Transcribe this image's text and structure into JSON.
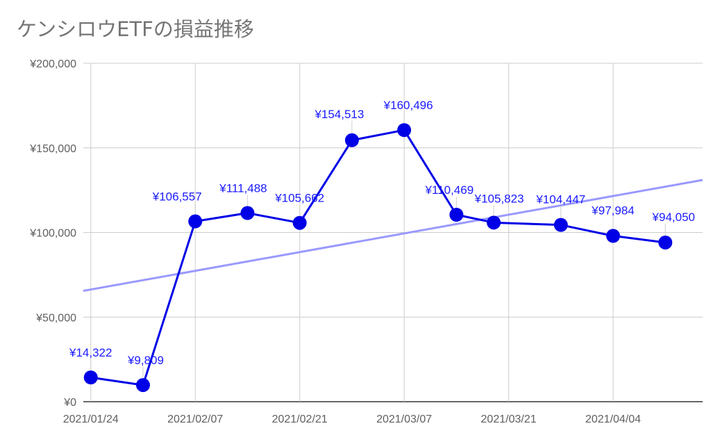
{
  "chart_data": {
    "type": "line",
    "title": "ケンシロウETFの損益推移",
    "xlabel": "",
    "ylabel": "",
    "x_ticks": [
      "2021/01/24",
      "2021/02/07",
      "2021/02/21",
      "2021/03/07",
      "2021/03/21",
      "2021/04/04"
    ],
    "y_ticks": [
      "¥0",
      "¥50,000",
      "¥100,000",
      "¥150,000",
      "¥200,000"
    ],
    "xlim": [
      "2021/01/23",
      "2021/04/16"
    ],
    "ylim": [
      0,
      200000
    ],
    "grid": true,
    "series": [
      {
        "color": "#0000e6",
        "points": [
          {
            "x": "2021/01/24",
            "y": 14322,
            "label": "¥14,322"
          },
          {
            "x": "2021/01/31",
            "y": 9809,
            "label": "¥9,809"
          },
          {
            "x": "2021/02/07",
            "y": 106557,
            "label": "¥106,557"
          },
          {
            "x": "2021/02/14",
            "y": 111488,
            "label": "¥111,488"
          },
          {
            "x": "2021/02/21",
            "y": 105662,
            "label": "¥105,662"
          },
          {
            "x": "2021/02/28",
            "y": 154513,
            "label": "¥154,513"
          },
          {
            "x": "2021/03/07",
            "y": 160496,
            "label": "¥160,496"
          },
          {
            "x": "2021/03/14",
            "y": 110469,
            "label": "¥110,469"
          },
          {
            "x": "2021/03/19",
            "y": 105823,
            "label": "¥105,823"
          },
          {
            "x": "2021/03/28",
            "y": 104447,
            "label": "¥104,447"
          },
          {
            "x": "2021/04/04",
            "y": 97984,
            "label": "¥97,984"
          },
          {
            "x": "2021/04/11",
            "y": 94050,
            "label": "¥94,050"
          }
        ]
      }
    ],
    "trendline": {
      "color": "#9999ff",
      "start": {
        "x": "2021/01/23",
        "y": 65500
      },
      "end": {
        "x": "2021/04/16",
        "y": 131000
      }
    }
  }
}
